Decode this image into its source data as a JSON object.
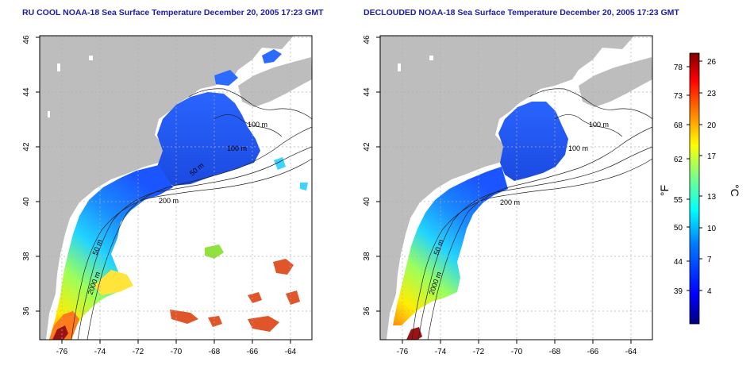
{
  "panels": [
    {
      "id": "left",
      "title": "RU COOL NOAA-18 Sea Surface Temperature December 20, 2005 17:23 GMT",
      "contour_labels": [
        "100 m",
        "100 m",
        "50 m",
        "200 m",
        "50 m",
        "2000 m"
      ]
    },
    {
      "id": "right",
      "title": "DECLOUDED NOAA-18 Sea Surface Temperature December 20, 2005 17:23 GMT",
      "contour_labels": [
        "100 m",
        "100 m",
        "200 m",
        "50 m",
        "2000 m"
      ]
    }
  ],
  "axes": {
    "lon_ticks": [
      "-76",
      "-74",
      "-72",
      "-70",
      "-68",
      "-66",
      "-64"
    ],
    "lat_ticks": [
      "36",
      "38",
      "40",
      "42",
      "44",
      "46"
    ]
  },
  "colorbar": {
    "left_label": "°F",
    "right_label": "°C",
    "fahrenheit_ticks": [
      "78",
      "73",
      "68",
      "62",
      "55",
      "50",
      "44",
      "39"
    ],
    "celsius_ticks": [
      "26",
      "23",
      "20",
      "17",
      "13",
      "10",
      "7",
      "4"
    ],
    "colors": [
      "#00007f",
      "#0000ff",
      "#0080ff",
      "#00ffff",
      "#80ff80",
      "#ffff00",
      "#ff8000",
      "#ff0000",
      "#7f0000"
    ]
  },
  "colors": {
    "title": "#1a1aa8",
    "land": "#bdbdbd",
    "frame": "#000000"
  }
}
